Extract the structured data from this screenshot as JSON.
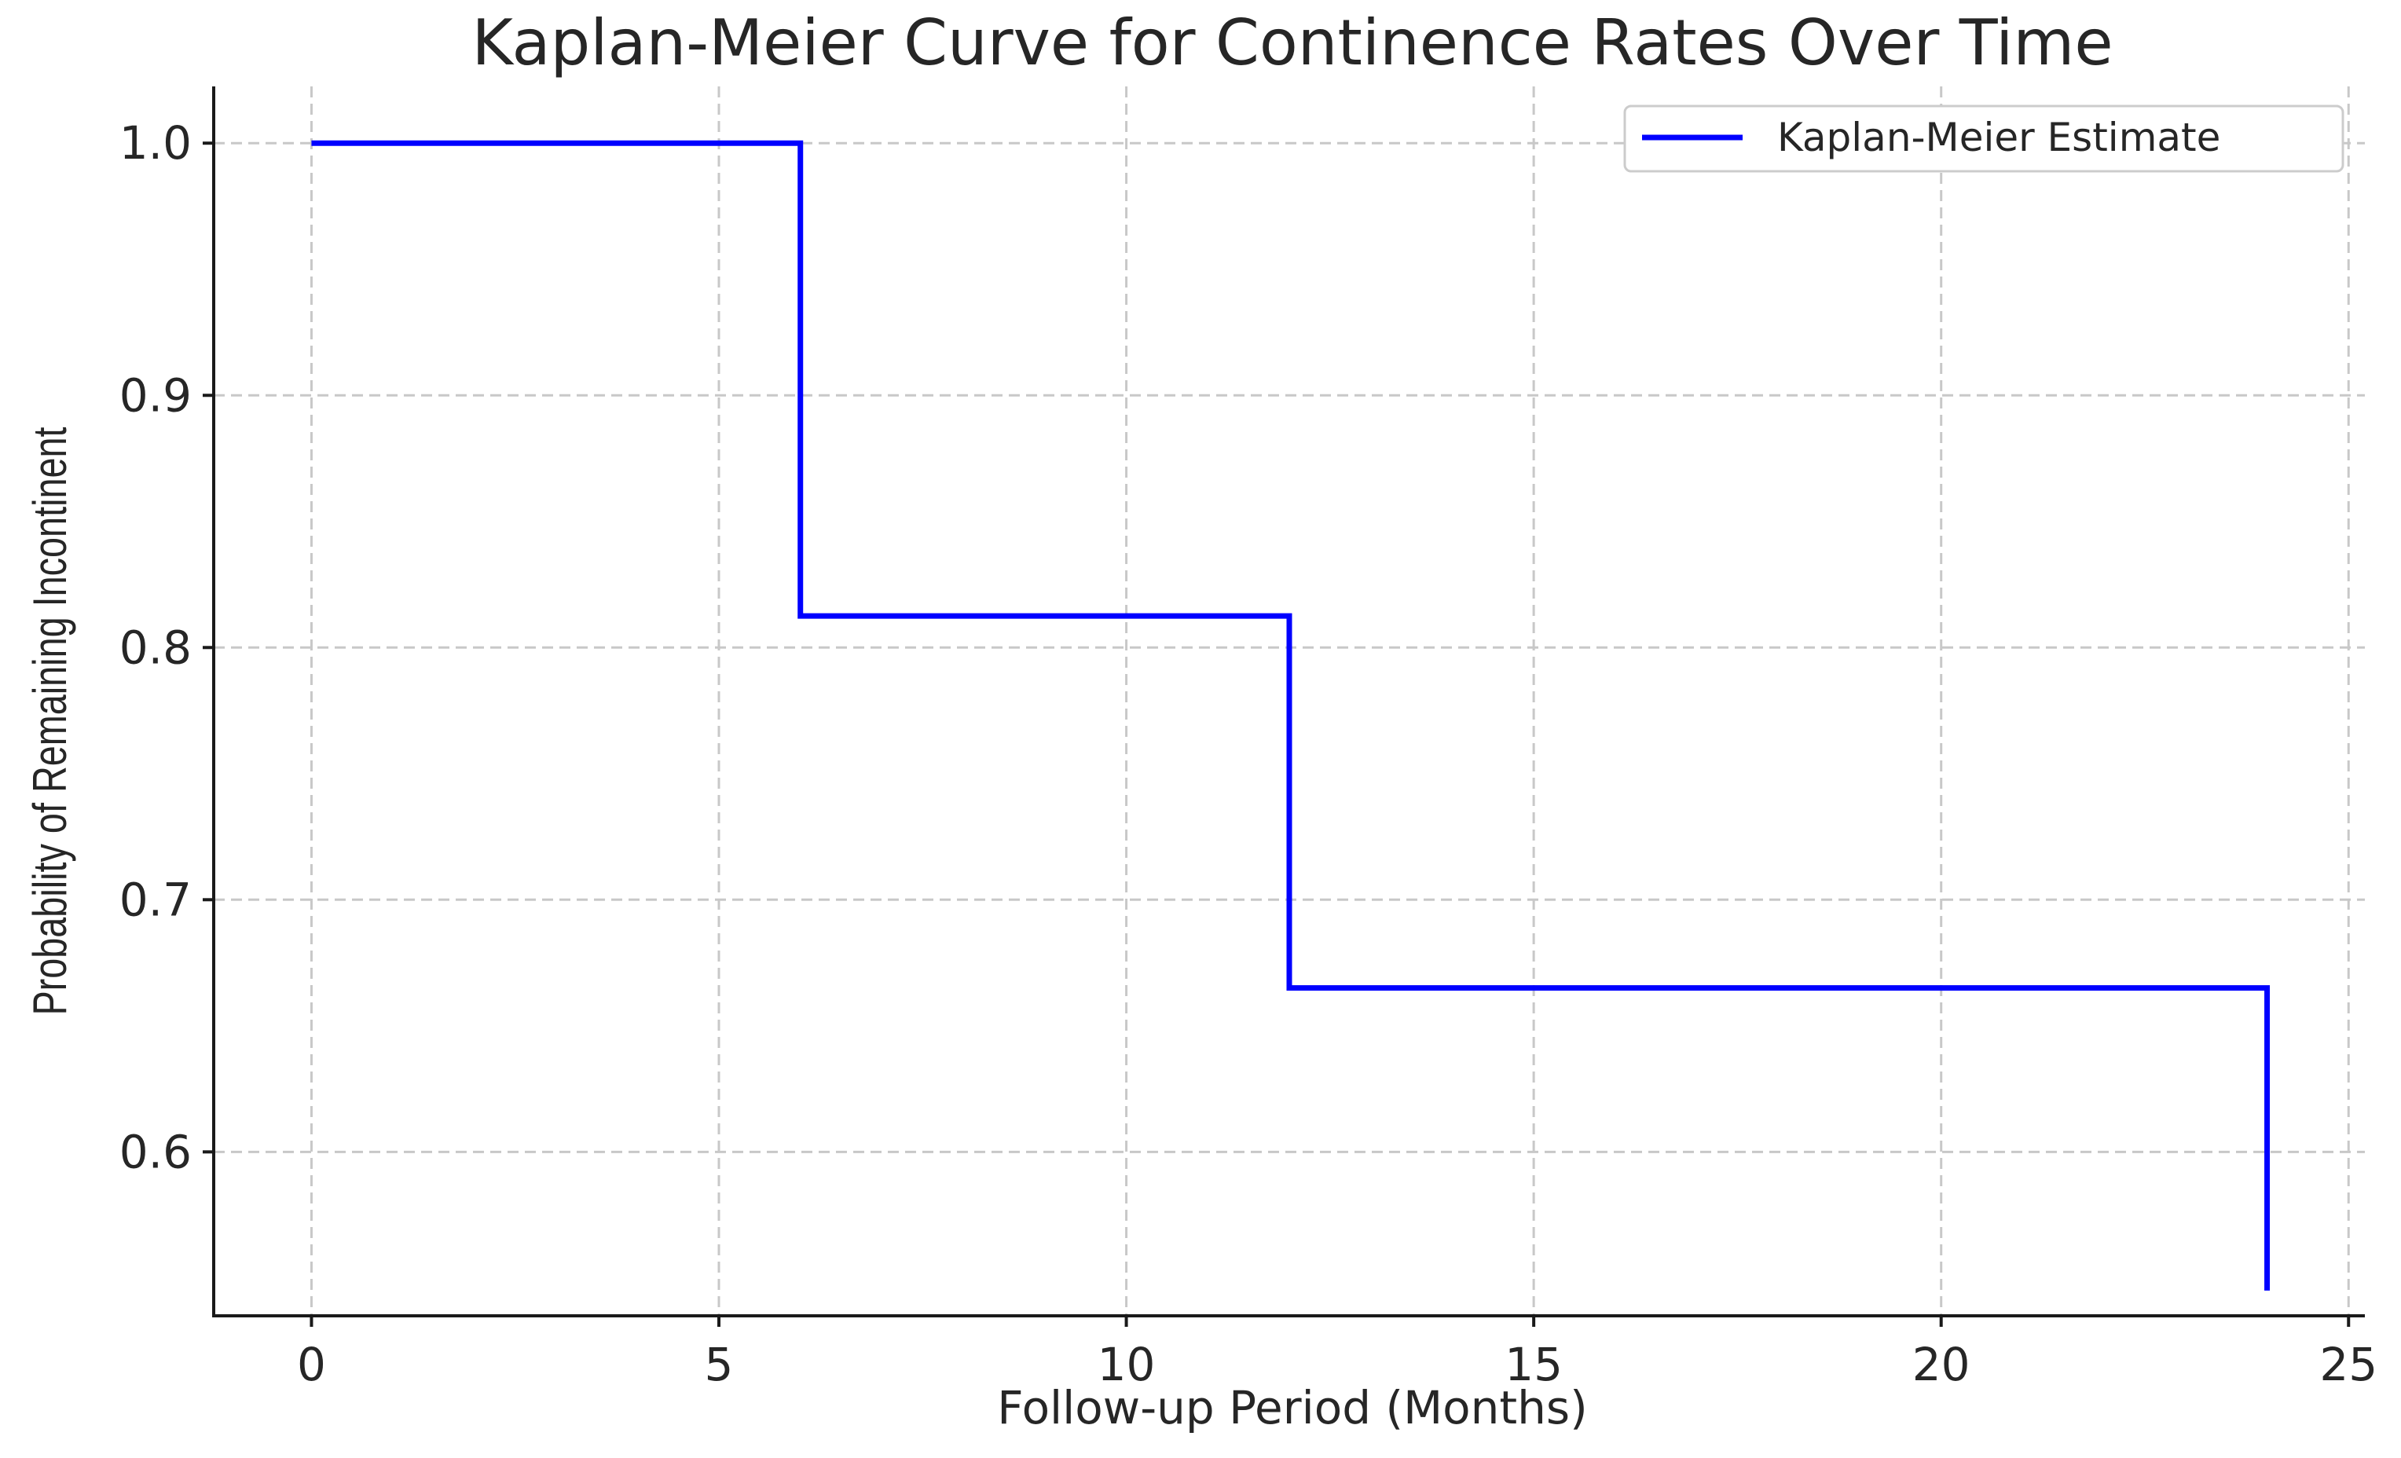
{
  "chart_data": {
    "type": "line",
    "title": "Kaplan-Meier Curve for Continence Rates Over Time",
    "xlabel": "Follow-up Period (Months)",
    "ylabel": "Probability of Remaining Incontinent",
    "xlim": [
      -1.2,
      25.2
    ],
    "ylim": [
      0.535,
      1.0225
    ],
    "x_ticks": [
      0,
      5,
      10,
      15,
      20,
      25
    ],
    "y_ticks": [
      0.6,
      0.7,
      0.8,
      0.9,
      1.0
    ],
    "x_tick_labels": [
      "0",
      "5",
      "10",
      "15",
      "20",
      "25"
    ],
    "y_tick_labels": [
      "0.6",
      "0.7",
      "0.8",
      "0.9",
      "1.0"
    ],
    "grid": true,
    "legend_position": "top-right",
    "step": "post",
    "series": [
      {
        "name": "Kaplan-Meier Estimate",
        "color": "#0000ff",
        "x": [
          0,
          6,
          12,
          24
        ],
        "y": [
          1.0,
          0.8125,
          0.665,
          0.545
        ]
      }
    ]
  }
}
